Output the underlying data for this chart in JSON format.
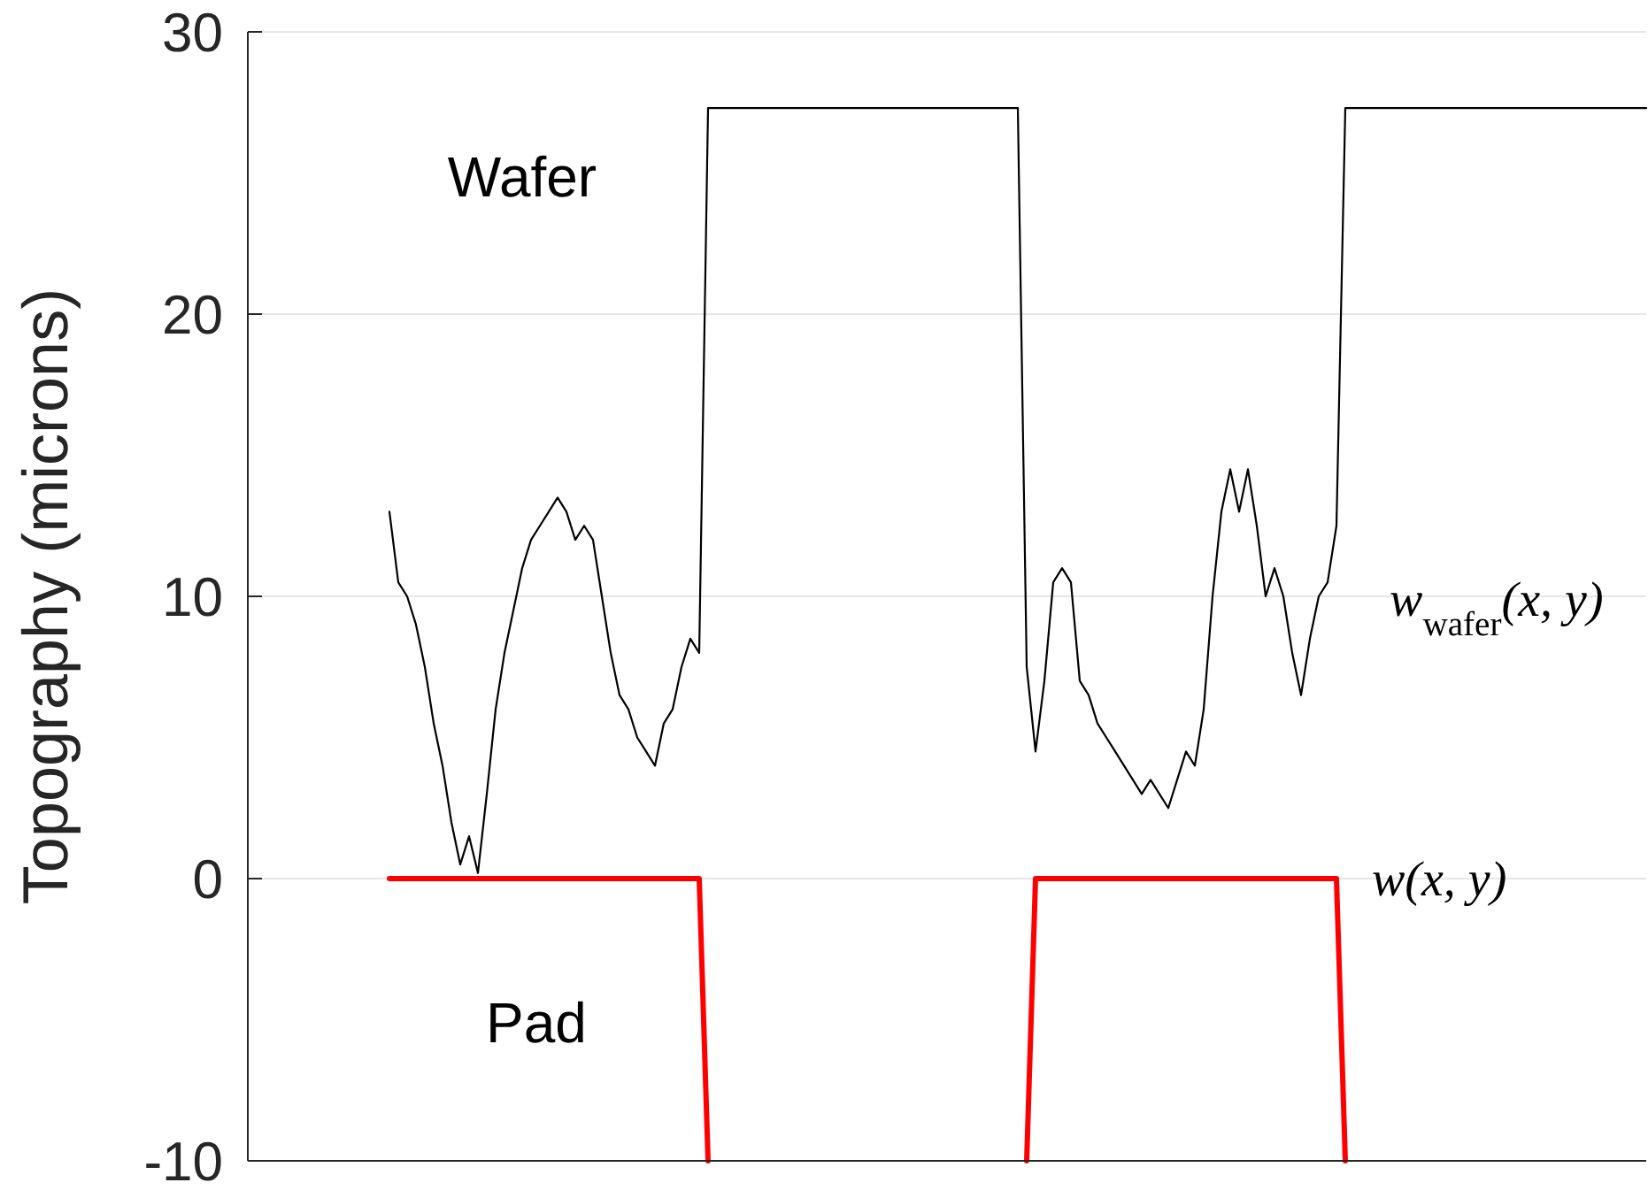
{
  "chart_data": {
    "type": "line",
    "ylabel": "Topography (microns)",
    "categories": [
      null,
      null,
      null,
      null,
      null,
      null,
      null,
      null,
      null,
      null,
      null,
      null,
      null,
      null,
      null,
      null,
      null,
      null,
      null,
      null,
      null,
      null,
      null,
      null,
      null,
      null,
      null,
      null,
      null,
      null,
      null,
      null,
      null,
      null,
      null,
      null,
      null,
      null,
      null,
      null,
      null,
      null,
      null,
      null,
      null,
      null,
      null,
      null,
      null,
      null,
      null,
      null,
      null,
      null,
      null,
      null,
      null,
      null,
      null,
      null,
      null,
      null,
      null,
      null,
      null,
      null,
      null,
      null,
      null,
      null,
      null,
      null,
      null,
      null,
      null,
      null,
      null,
      null,
      null,
      null,
      null,
      null,
      null,
      null,
      null,
      null,
      null,
      null,
      null,
      null,
      null,
      null,
      null,
      null,
      null,
      null,
      null,
      null,
      null,
      null,
      null,
      null,
      null,
      null,
      null,
      null,
      null,
      null,
      null,
      null,
      null,
      null,
      null,
      null,
      null,
      null,
      null,
      null,
      null,
      null,
      null,
      null,
      null,
      null,
      null,
      null,
      null,
      null,
      null,
      null,
      null,
      null,
      null,
      null,
      null,
      null,
      null,
      null,
      null,
      null,
      null,
      null,
      null,
      null,
      null,
      null,
      null,
      null,
      null,
      null,
      null,
      null,
      null,
      null,
      null,
      null,
      null,
      null,
      null
    ],
    "series": [
      {
        "color": "#000000",
        "values": [
          null,
          null,
          null,
          null,
          null,
          null,
          null,
          null,
          null,
          null,
          null,
          null,
          null,
          null,
          null,
          null,
          13,
          10.5,
          10,
          9,
          7.5,
          5.5,
          4,
          2,
          0.5,
          1.5,
          0.2,
          3,
          6,
          8,
          9.5,
          11,
          12,
          12.5,
          13,
          13.5,
          13,
          12,
          12.5,
          12,
          10,
          8,
          6.5,
          6,
          5,
          4.5,
          4,
          5.5,
          6,
          7.5,
          8.5,
          8,
          27.3,
          27.3,
          27.3,
          27.3,
          27.3,
          27.3,
          27.3,
          27.3,
          27.3,
          27.3,
          27.3,
          27.3,
          27.3,
          27.3,
          27.3,
          27.3,
          27.3,
          27.3,
          27.3,
          27.3,
          27.3,
          27.3,
          27.3,
          27.3,
          27.3,
          27.3,
          27.3,
          27.3,
          27.3,
          27.3,
          27.3,
          27.3,
          27.3,
          27.3,
          27.3,
          27.3,
          7.5,
          4.5,
          7,
          10.5,
          11,
          10.5,
          7,
          6.5,
          5.5,
          5,
          4.5,
          4,
          3.5,
          3,
          3.5,
          3,
          2.5,
          3.5,
          4.5,
          4,
          6,
          10,
          13,
          14.5,
          13,
          14.5,
          12.5,
          10,
          11,
          10,
          8,
          6.5,
          8.5,
          10,
          10.5,
          12.5,
          27.3,
          27.3,
          27.3,
          27.3,
          27.3,
          27.3,
          27.3,
          27.3,
          27.3,
          27.3,
          27.3,
          27.3,
          27.3,
          27.3,
          27.3,
          27.3,
          27.3,
          27.3,
          27.3,
          27.3,
          27.3,
          27.3,
          27.3,
          27.3,
          27.3,
          27.3,
          27.3,
          27.3,
          27.3,
          27.3,
          27.3,
          27.3,
          27.3,
          27.3,
          27.3
        ]
      },
      {
        "color": "#ff0000",
        "values": [
          null,
          null,
          null,
          null,
          null,
          null,
          null,
          null,
          null,
          null,
          null,
          null,
          null,
          null,
          null,
          null,
          0,
          0,
          0,
          0,
          0,
          0,
          0,
          0,
          0,
          0,
          0,
          0,
          0,
          0,
          0,
          0,
          0,
          0,
          0,
          0,
          0,
          0,
          0,
          0,
          0,
          0,
          0,
          0,
          0,
          0,
          0,
          0,
          0,
          0,
          0,
          0,
          -10,
          null,
          null,
          null,
          null,
          null,
          null,
          null,
          null,
          null,
          null,
          null,
          null,
          null,
          null,
          null,
          null,
          null,
          null,
          null,
          null,
          null,
          null,
          null,
          null,
          null,
          null,
          null,
          null,
          null,
          null,
          null,
          null,
          null,
          null,
          null,
          -10,
          0,
          0,
          0,
          0,
          0,
          0,
          0,
          0,
          0,
          0,
          0,
          0,
          0,
          0,
          0,
          0,
          0,
          0,
          0,
          0,
          0,
          0,
          0,
          0,
          0,
          0,
          0,
          0,
          0,
          0,
          0,
          0,
          0,
          0,
          0,
          -10,
          null,
          null,
          null,
          null,
          null,
          null,
          null,
          null,
          null,
          null,
          null,
          null,
          null,
          null,
          null,
          null,
          null,
          null,
          null,
          null,
          null,
          null,
          null,
          null,
          null,
          null,
          null,
          null,
          null,
          null,
          null,
          null,
          null,
          null
        ]
      }
    ],
    "ylim": [
      -10,
      30
    ],
    "yticks": [
      -10,
      0,
      10,
      20,
      30
    ],
    "grid": "y",
    "tick_labels": "y",
    "annotations": [
      "Wafer",
      "Pad",
      "w$_{wafer}$(x, y)",
      "w(x, y)"
    ]
  }
}
